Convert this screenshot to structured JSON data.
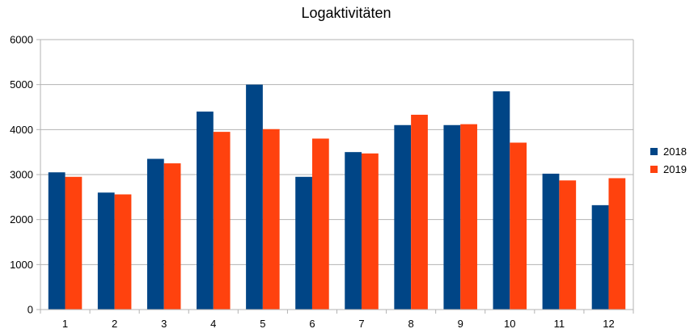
{
  "chart_data": {
    "type": "bar",
    "title": "Logaktivitäten",
    "xlabel": "",
    "ylabel": "",
    "categories": [
      "1",
      "2",
      "3",
      "4",
      "5",
      "6",
      "7",
      "8",
      "9",
      "10",
      "11",
      "12"
    ],
    "series": [
      {
        "name": "2018",
        "color": "#004586",
        "values": [
          3050,
          2600,
          3350,
          4400,
          5000,
          2950,
          3500,
          4100,
          4100,
          4850,
          3020,
          2320
        ]
      },
      {
        "name": "2019",
        "color": "#ff420e",
        "values": [
          2950,
          2560,
          3250,
          3950,
          4010,
          3800,
          3470,
          4330,
          4120,
          3710,
          2870,
          2920
        ]
      }
    ],
    "ylim": [
      0,
      6000
    ],
    "yticks": [
      0,
      1000,
      2000,
      3000,
      4000,
      5000,
      6000
    ],
    "grid": true,
    "legend_position": "right"
  }
}
